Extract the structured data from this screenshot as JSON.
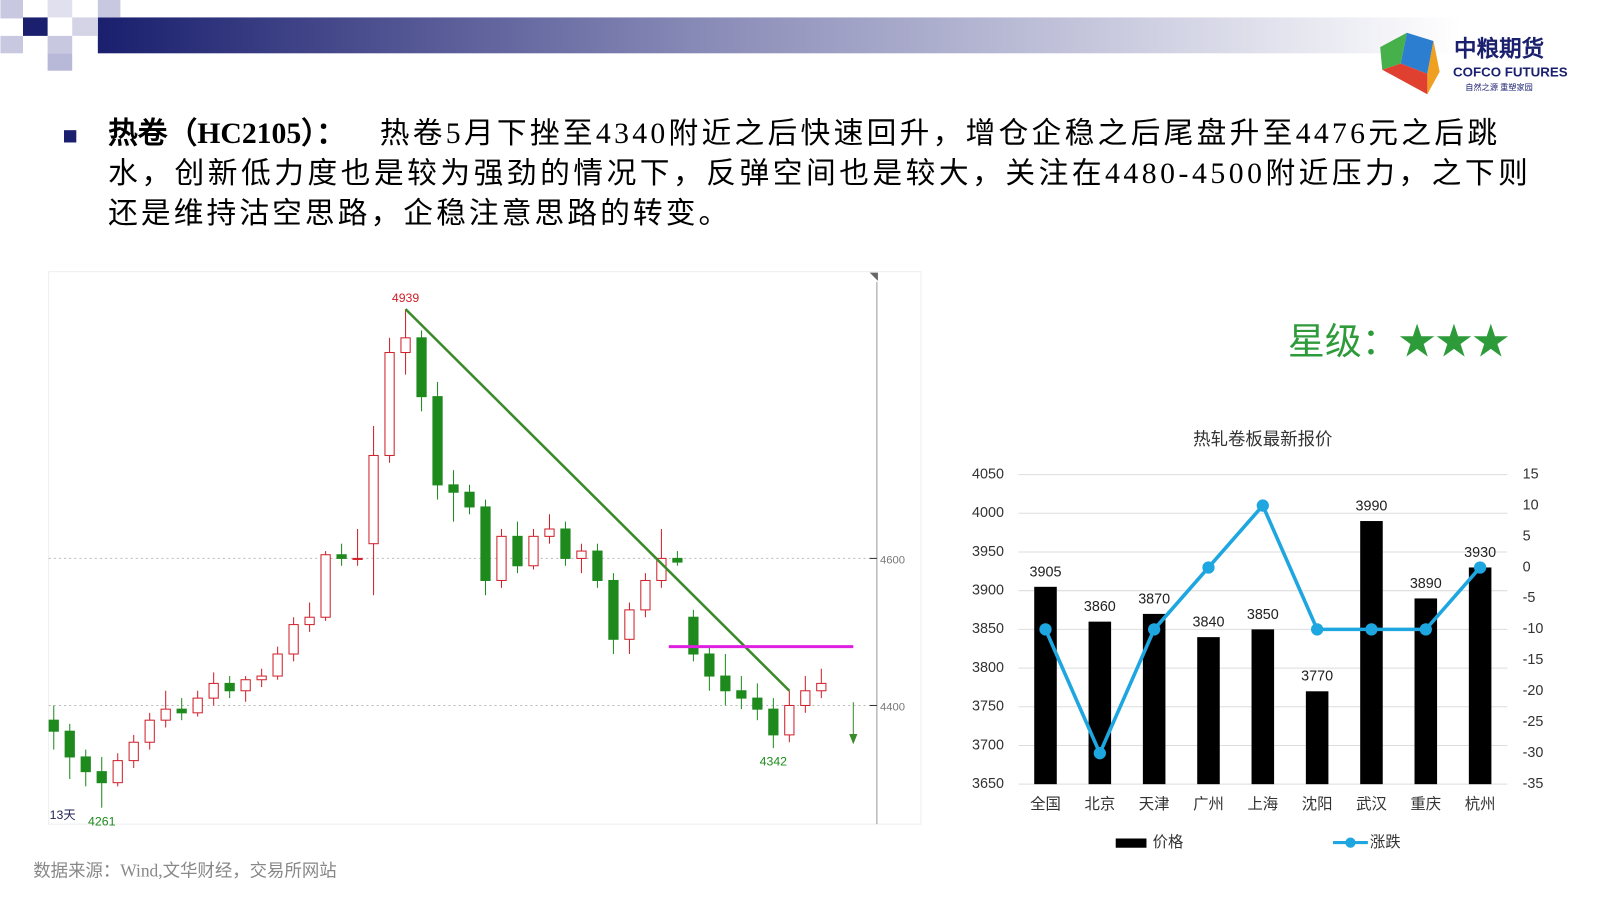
{
  "header": {
    "logo_name": "中粮期货",
    "logo_english": "COFCO FUTURES",
    "logo_slogan": "自然之源 重塑家园"
  },
  "paragraph": {
    "label": "热卷（HC2105）：",
    "lines": [
      "热卷5月下挫至4340附近之后快速回升，增仓企稳之后尾盘升至4476元之后跳",
      "水，创新低力度也是较为强劲的情况下，反弹空间也是较大，关注在4480-4500附近压力，之下则",
      "还是维持沽空思路，企稳注意思路的转变。"
    ]
  },
  "rating": "星级：★★★",
  "source": "数据来源：Wind,文华财经，交易所网站",
  "chart_data": [
    {
      "type": "candlestick",
      "up_color": "#d0202a",
      "down_color": "#1e8a1e",
      "ylim": [
        4240,
        4990
      ],
      "yticks": [
        4400,
        4600
      ],
      "grid": true,
      "period_label": "13天",
      "annotations": [
        4939,
        4342,
        4261
      ],
      "hline": {
        "value": 4480,
        "color": "#e020e0"
      },
      "candles": [
        [
          4380,
          4400,
          4340,
          4365
        ],
        [
          4365,
          4375,
          4300,
          4330
        ],
        [
          4330,
          4340,
          4290,
          4310
        ],
        [
          4310,
          4330,
          4261,
          4295
        ],
        [
          4295,
          4335,
          4290,
          4325
        ],
        [
          4325,
          4360,
          4315,
          4350
        ],
        [
          4350,
          4390,
          4340,
          4380
        ],
        [
          4380,
          4420,
          4370,
          4395
        ],
        [
          4395,
          4410,
          4380,
          4390
        ],
        [
          4390,
          4420,
          4385,
          4410
        ],
        [
          4410,
          4445,
          4400,
          4430
        ],
        [
          4430,
          4440,
          4410,
          4420
        ],
        [
          4420,
          4440,
          4405,
          4435
        ],
        [
          4435,
          4450,
          4425,
          4440
        ],
        [
          4440,
          4480,
          4435,
          4470
        ],
        [
          4470,
          4520,
          4460,
          4510
        ],
        [
          4510,
          4540,
          4500,
          4520
        ],
        [
          4520,
          4610,
          4515,
          4605
        ],
        [
          4605,
          4620,
          4590,
          4600
        ],
        [
          4600,
          4640,
          4590,
          4600
        ],
        [
          4620,
          4780,
          4550,
          4740
        ],
        [
          4740,
          4900,
          4730,
          4880
        ],
        [
          4880,
          4939,
          4850,
          4900
        ],
        [
          4900,
          4910,
          4800,
          4820
        ],
        [
          4820,
          4840,
          4680,
          4700
        ],
        [
          4700,
          4720,
          4650,
          4690
        ],
        [
          4690,
          4700,
          4660,
          4670
        ],
        [
          4670,
          4680,
          4550,
          4570
        ],
        [
          4570,
          4640,
          4560,
          4630
        ],
        [
          4630,
          4650,
          4580,
          4590
        ],
        [
          4590,
          4640,
          4585,
          4630
        ],
        [
          4630,
          4660,
          4620,
          4640
        ],
        [
          4640,
          4650,
          4590,
          4600
        ],
        [
          4600,
          4620,
          4580,
          4610
        ],
        [
          4610,
          4620,
          4560,
          4570
        ],
        [
          4570,
          4580,
          4470,
          4490
        ],
        [
          4490,
          4540,
          4470,
          4530
        ],
        [
          4530,
          4580,
          4520,
          4570
        ],
        [
          4570,
          4640,
          4560,
          4600
        ],
        [
          4600,
          4610,
          4590,
          4595
        ],
        [
          4520,
          4530,
          4460,
          4470
        ],
        [
          4470,
          4480,
          4420,
          4440
        ],
        [
          4440,
          4470,
          4400,
          4420
        ],
        [
          4420,
          4440,
          4395,
          4410
        ],
        [
          4410,
          4430,
          4380,
          4395
        ],
        [
          4395,
          4410,
          4342,
          4360
        ],
        [
          4360,
          4420,
          4350,
          4400
        ],
        [
          4400,
          4440,
          4390,
          4420
        ],
        [
          4420,
          4450,
          4410,
          4430
        ]
      ]
    },
    {
      "type": "bar-line",
      "title": "热轧卷板最新报价",
      "categories": [
        "全国",
        "北京",
        "天津",
        "广州",
        "上海",
        "沈阳",
        "武汉",
        "重庆",
        "杭州"
      ],
      "series": [
        {
          "name": "价格",
          "color": "#000000",
          "values": [
            3905,
            3860,
            3870,
            3840,
            3850,
            3770,
            3990,
            3890,
            3930
          ]
        },
        {
          "name": "涨跌",
          "color": "#1ea6e0",
          "axis": "y2",
          "values": [
            -10,
            -30,
            -10,
            0,
            10,
            -10,
            -10,
            -10,
            0
          ]
        }
      ],
      "ylim": [
        3650,
        4050
      ],
      "yticks": [
        3650,
        3700,
        3750,
        3800,
        3850,
        3900,
        3950,
        4000,
        4050
      ],
      "y2lim": [
        -35,
        15
      ],
      "y2ticks": [
        -35,
        -30,
        -25,
        -20,
        -15,
        -10,
        -5,
        0,
        5,
        10,
        15
      ],
      "grid": true
    }
  ]
}
